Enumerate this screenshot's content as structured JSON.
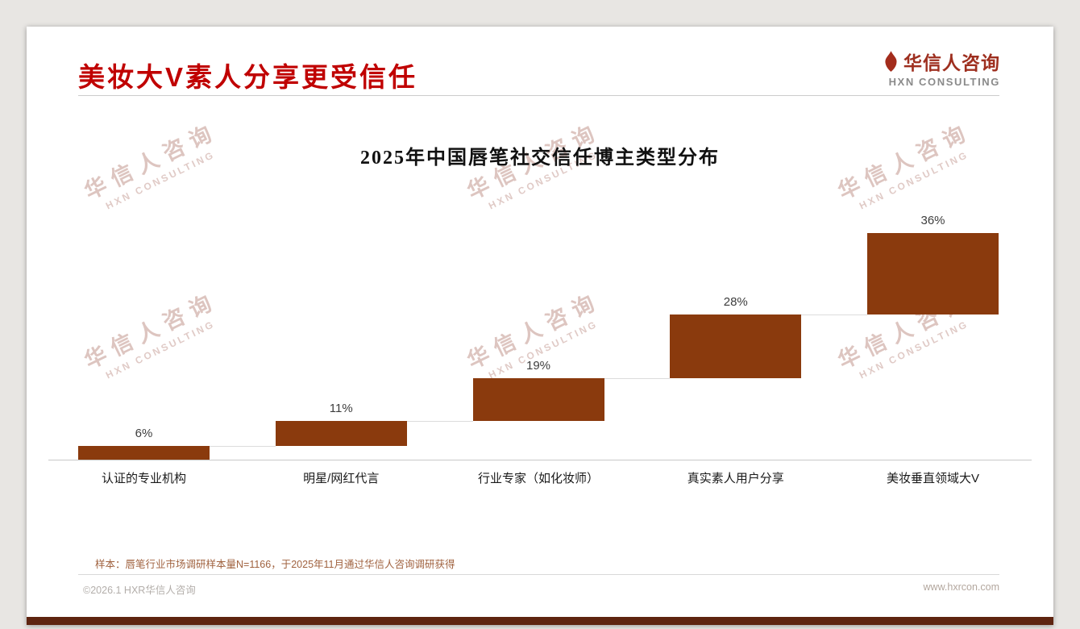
{
  "header": {
    "title": "美妆大V素人分享更受信任",
    "logo": {
      "name": "华信人咨询",
      "subtitle": "HXN CONSULTING",
      "icon": "flame-icon"
    }
  },
  "watermark": {
    "line1": "华信人咨询",
    "line2": "HXN CONSULTING"
  },
  "chart_data": {
    "type": "bar",
    "variant": "ascending-waterfall",
    "title": "2025年中国唇笔社交信任博主类型分布",
    "categories": [
      "认证的专业机构",
      "明星/网红代言",
      "行业专家（如化妆师）",
      "真实素人用户分享",
      "美妆垂直领域大V"
    ],
    "values": [
      6,
      11,
      19,
      28,
      36
    ],
    "value_labels": [
      "6%",
      "11%",
      "19%",
      "28%",
      "36%"
    ],
    "unit": "%",
    "total": 100,
    "ylim": [
      0,
      100
    ],
    "grid": false,
    "legend": "none",
    "y_axis_visible": false,
    "bar_color": "#8A3A0D"
  },
  "footnote": "样本：唇笔行业市场调研样本量N=1166，于2025年11月通过华信人咨询调研获得",
  "footer": {
    "copyright": "©2026.1 HXR华信人咨询",
    "website": "www.hxrcon.com"
  },
  "colors": {
    "title_red": "#C00000",
    "bar_brown": "#8A3A0D",
    "logo_red": "#9E2F1F",
    "bottom_strip": "#5E2410",
    "footnote_brown": "#A0623F",
    "page_background": "#e8e6e3"
  }
}
